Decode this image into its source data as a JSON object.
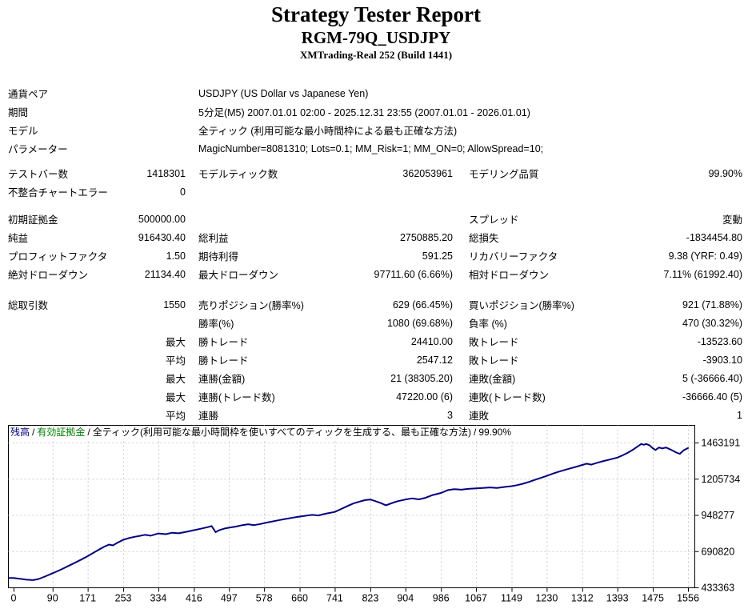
{
  "header": {
    "title": "Strategy Tester Report",
    "symbol_title": "RGM-79Q_USDJPY",
    "broker_line": "XMTrading-Real 252 (Build 1441)"
  },
  "table": {
    "sections": [
      {
        "kind": "info",
        "rows": [
          {
            "label": "通貨ペア",
            "value": "USDJPY (US Dollar vs Japanese Yen)"
          },
          {
            "label": "期間",
            "value": "5分足(M5) 2007.01.01 02:00 - 2025.12.31 23:55 (2007.01.01 - 2026.01.01)"
          },
          {
            "label": "モデル",
            "value": "全ティック (利用可能な最小時間枠による最も正確な方法)"
          },
          {
            "label": "パラメーター",
            "value": "MagicNumber=8081310; Lots=0.1; MM_Risk=1; MM_ON=0; AllowSpread=10;"
          }
        ]
      },
      {
        "kind": "stats",
        "rows": [
          [
            "テストバー数",
            "1418301",
            "モデルティック数",
            "362053961",
            "モデリング品質",
            "99.90%"
          ],
          [
            "不整合チャートエラー",
            "0",
            "",
            "",
            "",
            ""
          ]
        ]
      },
      {
        "kind": "stats",
        "rows": [
          [
            "初期証拠金",
            "500000.00",
            "",
            "",
            "スプレッド",
            "変動"
          ],
          [
            "純益",
            "916430.40",
            "総利益",
            "2750885.20",
            "総損失",
            "-1834454.80"
          ],
          [
            "プロフィットファクタ",
            "1.50",
            "期待利得",
            "591.25",
            "リカバリーファクタ",
            "9.38 (YRF: 0.49)"
          ],
          [
            "絶対ドローダウン",
            "21134.40",
            "最大ドローダウン",
            "97711.60 (6.66%)",
            "相対ドローダウン",
            "7.11% (61992.40)"
          ]
        ]
      },
      {
        "kind": "stats",
        "rows": [
          [
            "総取引数",
            "1550",
            "売りポジション(勝率%)",
            "629 (66.45%)",
            "買いポジション(勝率%)",
            "921 (71.88%)"
          ],
          [
            "",
            "",
            "勝率(%)",
            "1080 (69.68%)",
            "負率 (%)",
            "470 (30.32%)"
          ],
          [
            "",
            "最大",
            "勝トレード",
            "24410.00",
            "敗トレード",
            "-13523.60"
          ],
          [
            "",
            "平均",
            "勝トレード",
            "2547.12",
            "敗トレード",
            "-3903.10"
          ],
          [
            "",
            "最大",
            "連勝(金額)",
            "21 (38305.20)",
            "連敗(金額)",
            "5 (-36666.40)"
          ],
          [
            "",
            "最大",
            "連勝(トレード数)",
            "47220.00 (6)",
            "連敗(トレード数)",
            "-36666.40 (5)"
          ],
          [
            "",
            "平均",
            "連勝",
            "3",
            "連敗",
            "1"
          ]
        ]
      }
    ]
  },
  "chart_data": {
    "type": "line",
    "legend": {
      "balance_label": "残高",
      "equity_label": "有効証拠金",
      "model_note": "全ティック(利用可能な最小時間枠を使いすべてのティックを生成する、最も正確な方法)",
      "quality": "99.90%",
      "separator": "/"
    },
    "colors": {
      "balance": "#000080",
      "equity": "#008000",
      "grid": "#c9c9c9",
      "axis": "#000000",
      "text": "#000000"
    },
    "grid": "dashed",
    "legend_position": "top-left-inside",
    "xlim": [
      0,
      1556
    ],
    "ylim": [
      433363,
      1463191
    ],
    "x_ticks": [
      0,
      90,
      171,
      253,
      334,
      416,
      497,
      578,
      660,
      741,
      823,
      904,
      986,
      1067,
      1149,
      1230,
      1312,
      1393,
      1475,
      1556
    ],
    "y_ticks": [
      433363,
      690820,
      948277,
      1205734,
      1463191
    ],
    "series": [
      {
        "name": "残高",
        "color": "#000080",
        "points": [
          [
            0,
            500000
          ],
          [
            15,
            494000
          ],
          [
            30,
            488000
          ],
          [
            45,
            485000
          ],
          [
            58,
            493000
          ],
          [
            72,
            510000
          ],
          [
            85,
            528000
          ],
          [
            100,
            547000
          ],
          [
            114,
            567000
          ],
          [
            128,
            588000
          ],
          [
            143,
            611000
          ],
          [
            158,
            634000
          ],
          [
            171,
            655000
          ],
          [
            184,
            679000
          ],
          [
            197,
            702000
          ],
          [
            210,
            724000
          ],
          [
            220,
            738000
          ],
          [
            229,
            732000
          ],
          [
            241,
            753000
          ],
          [
            253,
            772000
          ],
          [
            266,
            784000
          ],
          [
            279,
            793000
          ],
          [
            291,
            800000
          ],
          [
            303,
            807000
          ],
          [
            316,
            801000
          ],
          [
            334,
            817000
          ],
          [
            351,
            812000
          ],
          [
            366,
            822000
          ],
          [
            381,
            818000
          ],
          [
            399,
            829000
          ],
          [
            416,
            840000
          ],
          [
            431,
            850000
          ],
          [
            447,
            861000
          ],
          [
            457,
            869000
          ],
          [
            466,
            826000
          ],
          [
            475,
            841000
          ],
          [
            487,
            852000
          ],
          [
            497,
            858000
          ],
          [
            513,
            866000
          ],
          [
            528,
            876000
          ],
          [
            541,
            882000
          ],
          [
            555,
            876000
          ],
          [
            569,
            884000
          ],
          [
            584,
            894000
          ],
          [
            600,
            904000
          ],
          [
            615,
            913000
          ],
          [
            631,
            922000
          ],
          [
            646,
            930000
          ],
          [
            660,
            937000
          ],
          [
            676,
            944000
          ],
          [
            689,
            949000
          ],
          [
            703,
            945000
          ],
          [
            719,
            957000
          ],
          [
            741,
            970000
          ],
          [
            754,
            988000
          ],
          [
            769,
            1010000
          ],
          [
            784,
            1030000
          ],
          [
            799,
            1044000
          ],
          [
            811,
            1054000
          ],
          [
            823,
            1058000
          ],
          [
            834,
            1047000
          ],
          [
            847,
            1033000
          ],
          [
            859,
            1017000
          ],
          [
            871,
            1031000
          ],
          [
            886,
            1046000
          ],
          [
            904,
            1058000
          ],
          [
            919,
            1066000
          ],
          [
            935,
            1059000
          ],
          [
            950,
            1070000
          ],
          [
            967,
            1090000
          ],
          [
            986,
            1105000
          ],
          [
            1002,
            1125000
          ],
          [
            1017,
            1132000
          ],
          [
            1033,
            1128000
          ],
          [
            1049,
            1134000
          ],
          [
            1067,
            1137000
          ],
          [
            1083,
            1140000
          ],
          [
            1099,
            1144000
          ],
          [
            1115,
            1140000
          ],
          [
            1131,
            1147000
          ],
          [
            1149,
            1153000
          ],
          [
            1161,
            1160000
          ],
          [
            1175,
            1170000
          ],
          [
            1189,
            1183000
          ],
          [
            1203,
            1198000
          ],
          [
            1217,
            1212000
          ],
          [
            1230,
            1226000
          ],
          [
            1243,
            1241000
          ],
          [
            1257,
            1255000
          ],
          [
            1271,
            1268000
          ],
          [
            1285,
            1280000
          ],
          [
            1299,
            1292000
          ],
          [
            1312,
            1304000
          ],
          [
            1322,
            1313000
          ],
          [
            1333,
            1306000
          ],
          [
            1347,
            1320000
          ],
          [
            1361,
            1332000
          ],
          [
            1375,
            1342000
          ],
          [
            1393,
            1356000
          ],
          [
            1405,
            1372000
          ],
          [
            1418,
            1392000
          ],
          [
            1430,
            1414000
          ],
          [
            1440,
            1436000
          ],
          [
            1448,
            1453000
          ],
          [
            1454,
            1447000
          ],
          [
            1460,
            1453000
          ],
          [
            1467,
            1444000
          ],
          [
            1475,
            1422000
          ],
          [
            1481,
            1410000
          ],
          [
            1489,
            1428000
          ],
          [
            1497,
            1421000
          ],
          [
            1505,
            1428000
          ],
          [
            1513,
            1417000
          ],
          [
            1521,
            1406000
          ],
          [
            1529,
            1392000
          ],
          [
            1537,
            1383000
          ],
          [
            1546,
            1408000
          ],
          [
            1556,
            1424000
          ]
        ]
      }
    ]
  }
}
